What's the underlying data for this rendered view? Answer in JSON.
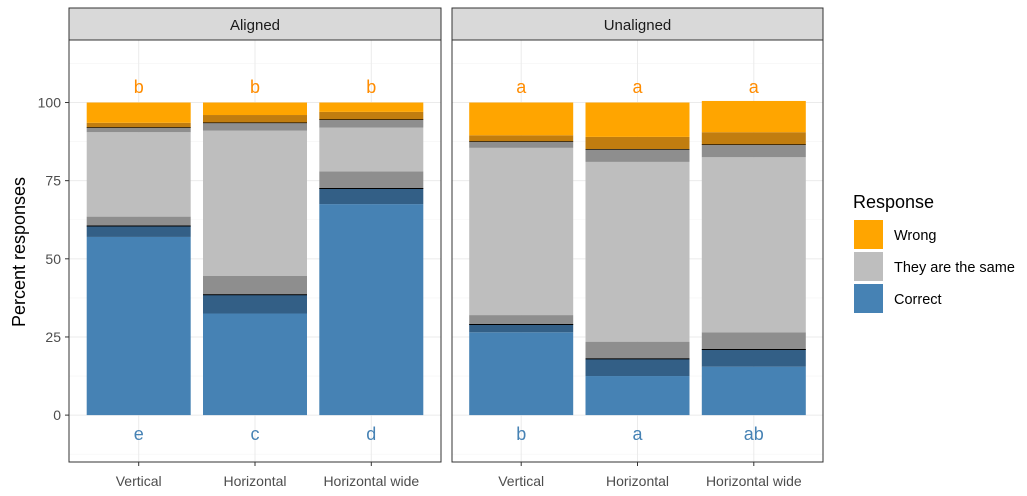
{
  "chart_data": {
    "type": "bar",
    "stacked": true,
    "ylabel": "Percent responses",
    "xlabel": "",
    "ylim": [
      -15,
      120
    ],
    "yticks": [
      0,
      25,
      50,
      75,
      100
    ],
    "grid": true,
    "legend": {
      "title": "Response",
      "placement": "right",
      "entries": [
        {
          "label": "Wrong",
          "color": "#FFA500"
        },
        {
          "label": "They are the same",
          "color": "#BEBEBE"
        },
        {
          "label": "Correct",
          "color": "#4682B4"
        }
      ]
    },
    "facets": [
      {
        "name": "Aligned",
        "categories": [
          "Vertical",
          "Horizontal",
          "Horizontal wide"
        ],
        "bars": [
          {
            "category": "Vertical",
            "top_letter": "b",
            "bottom_letter": "e",
            "segments": [
              {
                "response": "Correct",
                "shade": "light",
                "value": 57
              },
              {
                "response": "Correct",
                "shade": "dark",
                "value": 3.5
              },
              {
                "response": "They are the same",
                "shade": "dark",
                "value": 3
              },
              {
                "response": "They are the same",
                "shade": "light",
                "value": 27
              },
              {
                "response": "They are the same",
                "shade": "dark",
                "value": 1.5
              },
              {
                "response": "Wrong",
                "shade": "dark",
                "value": 1.5
              },
              {
                "response": "Wrong",
                "shade": "light",
                "value": 6.5
              }
            ]
          },
          {
            "category": "Horizontal",
            "top_letter": "b",
            "bottom_letter": "c",
            "segments": [
              {
                "response": "Correct",
                "shade": "light",
                "value": 32.5
              },
              {
                "response": "Correct",
                "shade": "dark",
                "value": 6
              },
              {
                "response": "They are the same",
                "shade": "dark",
                "value": 6
              },
              {
                "response": "They are the same",
                "shade": "light",
                "value": 46.5
              },
              {
                "response": "They are the same",
                "shade": "dark",
                "value": 2.5
              },
              {
                "response": "Wrong",
                "shade": "dark",
                "value": 2.5
              },
              {
                "response": "Wrong",
                "shade": "light",
                "value": 4
              }
            ]
          },
          {
            "category": "Horizontal wide",
            "top_letter": "b",
            "bottom_letter": "d",
            "segments": [
              {
                "response": "Correct",
                "shade": "light",
                "value": 67.5
              },
              {
                "response": "Correct",
                "shade": "dark",
                "value": 5
              },
              {
                "response": "They are the same",
                "shade": "dark",
                "value": 5.5
              },
              {
                "response": "They are the same",
                "shade": "light",
                "value": 14
              },
              {
                "response": "They are the same",
                "shade": "dark",
                "value": 2.5
              },
              {
                "response": "Wrong",
                "shade": "dark",
                "value": 2.5
              },
              {
                "response": "Wrong",
                "shade": "light",
                "value": 3
              }
            ]
          }
        ]
      },
      {
        "name": "Unaligned",
        "categories": [
          "Vertical",
          "Horizontal",
          "Horizontal wide"
        ],
        "bars": [
          {
            "category": "Vertical",
            "top_letter": "a",
            "bottom_letter": "b",
            "segments": [
              {
                "response": "Correct",
                "shade": "light",
                "value": 26.5
              },
              {
                "response": "Correct",
                "shade": "dark",
                "value": 2.5
              },
              {
                "response": "They are the same",
                "shade": "dark",
                "value": 3
              },
              {
                "response": "They are the same",
                "shade": "light",
                "value": 53.5
              },
              {
                "response": "They are the same",
                "shade": "dark",
                "value": 2
              },
              {
                "response": "Wrong",
                "shade": "dark",
                "value": 2
              },
              {
                "response": "Wrong",
                "shade": "light",
                "value": 10.5
              }
            ]
          },
          {
            "category": "Horizontal",
            "top_letter": "a",
            "bottom_letter": "a",
            "segments": [
              {
                "response": "Correct",
                "shade": "light",
                "value": 12.5
              },
              {
                "response": "Correct",
                "shade": "dark",
                "value": 5.5
              },
              {
                "response": "They are the same",
                "shade": "dark",
                "value": 5.5
              },
              {
                "response": "They are the same",
                "shade": "light",
                "value": 57.5
              },
              {
                "response": "They are the same",
                "shade": "dark",
                "value": 4
              },
              {
                "response": "Wrong",
                "shade": "dark",
                "value": 4
              },
              {
                "response": "Wrong",
                "shade": "light",
                "value": 11
              }
            ]
          },
          {
            "category": "Horizontal wide",
            "top_letter": "a",
            "bottom_letter": "ab",
            "segments": [
              {
                "response": "Correct",
                "shade": "light",
                "value": 15.5
              },
              {
                "response": "Correct",
                "shade": "dark",
                "value": 5.5
              },
              {
                "response": "They are the same",
                "shade": "dark",
                "value": 5.5
              },
              {
                "response": "They are the same",
                "shade": "light",
                "value": 56
              },
              {
                "response": "They are the same",
                "shade": "dark",
                "value": 4
              },
              {
                "response": "Wrong",
                "shade": "dark",
                "value": 4
              },
              {
                "response": "Wrong",
                "shade": "light",
                "value": 10
              }
            ]
          }
        ]
      }
    ],
    "colors": {
      "Wrong": {
        "light": "#FFA500",
        "dark": "#C17D0F"
      },
      "They are the same": {
        "light": "#BEBEBE",
        "dark": "#8E8E8E"
      },
      "Correct": {
        "light": "#4682B4",
        "dark": "#335F86"
      },
      "top_letter": "#FF8C00",
      "bottom_letter": "#4682B4"
    }
  }
}
